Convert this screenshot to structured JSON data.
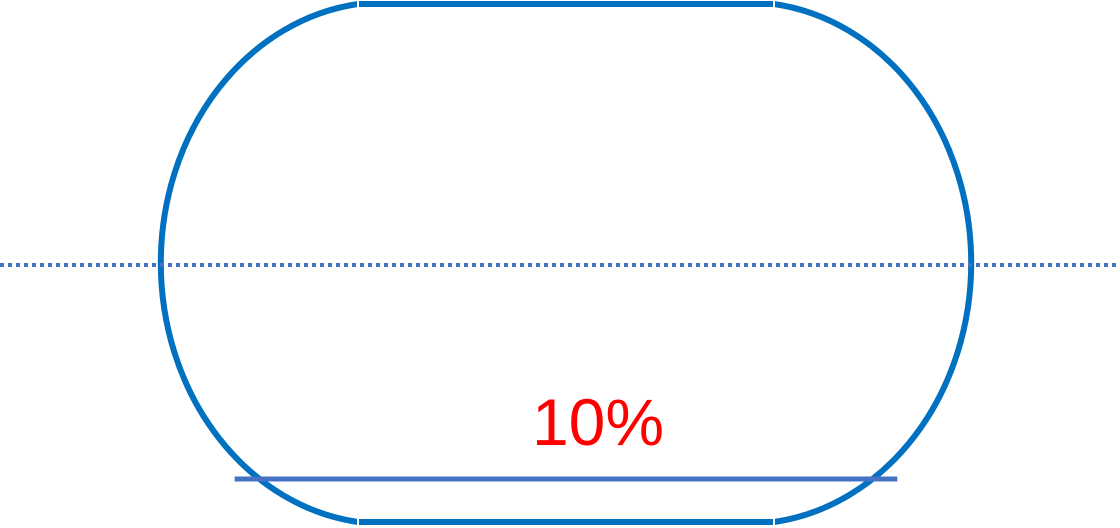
{
  "diagram": {
    "fill_label": "10%",
    "fill_fraction": 0.1,
    "colors": {
      "outline": "#0070C0",
      "seam_marks": "#ffffff",
      "midline": "#4472C4",
      "level_line": "#4472C4",
      "label": "#FF0000"
    }
  }
}
